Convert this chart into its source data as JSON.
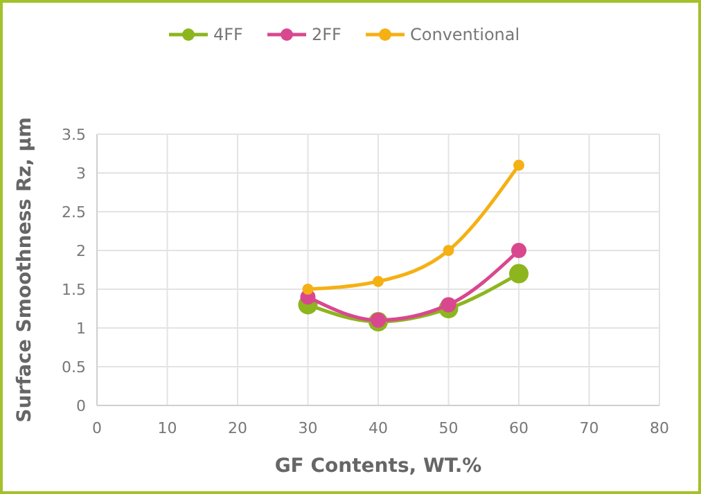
{
  "chart_data": {
    "type": "line",
    "xlabel": "GF Contents, WT.%",
    "ylabel": "Surface Smoothness  Rz, µm",
    "x": [
      30,
      40,
      50,
      60
    ],
    "series": [
      {
        "name": "4FF",
        "color": "#8db51e",
        "values": [
          1.3,
          1.08,
          1.25,
          1.7
        ]
      },
      {
        "name": "2FF",
        "color": "#d9488f",
        "values": [
          1.4,
          1.1,
          1.3,
          2.0
        ]
      },
      {
        "name": "Conventional",
        "color": "#f5b014",
        "values": [
          1.5,
          1.6,
          2.0,
          3.1
        ]
      }
    ],
    "xlim": [
      0,
      80
    ],
    "xticks": [
      0,
      10,
      20,
      30,
      40,
      50,
      60,
      70,
      80
    ],
    "ylim": [
      0,
      3.5
    ],
    "yticks": [
      0,
      0.5,
      1,
      1.5,
      2,
      2.5,
      3,
      3.5
    ],
    "grid": true,
    "legend": "top",
    "marker": "circle",
    "line_style": "solid"
  }
}
